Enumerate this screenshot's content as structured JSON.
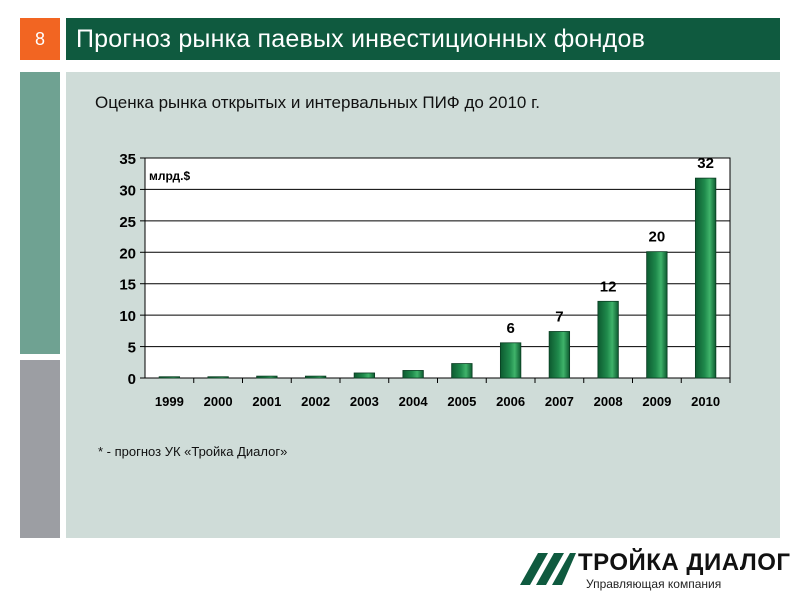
{
  "slide": {
    "page_number": "8",
    "title": "Прогноз рынка паевых инвестиционных фондов",
    "subtitle": "Оценка рынка открытых и интервальных ПИФ до 2010 г.",
    "footnote": "* - прогноз УК «Тройка Диалог»"
  },
  "logo": {
    "name": "ТРОЙКА ДИАЛОГ",
    "tagline": "Управляющая компания"
  },
  "colors": {
    "brand_green": "#0f5a3f",
    "accent_orange": "#f26522",
    "panel_bg": "#cfdcd8",
    "bar_green": "#1f8a4c"
  },
  "chart_data": {
    "type": "bar",
    "title": "",
    "ylabel": "млрд.$",
    "xlabel": "",
    "categories": [
      "1999",
      "2000",
      "2001",
      "2002",
      "2003",
      "2004",
      "2005",
      "2006",
      "2007",
      "2008",
      "2009",
      "2010"
    ],
    "values": [
      0.2,
      0.2,
      0.3,
      0.3,
      0.8,
      1.2,
      2.3,
      5.6,
      7.4,
      12.2,
      20.1,
      31.8
    ],
    "data_labels": [
      "",
      "",
      "",
      "",
      "",
      "",
      "",
      "6",
      "7",
      "12",
      "20",
      "32"
    ],
    "ylim": [
      0,
      35
    ],
    "yticks": [
      "0",
      "5",
      "10",
      "15",
      "20",
      "25",
      "30",
      "35"
    ],
    "grid": true,
    "legend": "none"
  }
}
